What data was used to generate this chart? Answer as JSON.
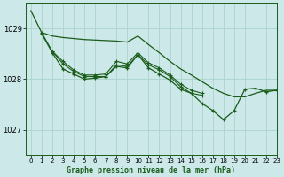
{
  "background_color": "#cce8e8",
  "grid_color": "#aad4cc",
  "line_color": "#1a5c1a",
  "title": "Graphe pression niveau de la mer (hPa)",
  "xlim": [
    -0.5,
    23
  ],
  "ylim": [
    1026.5,
    1029.5
  ],
  "yticks": [
    1027,
    1028,
    1029
  ],
  "xticks": [
    0,
    1,
    2,
    3,
    4,
    5,
    6,
    7,
    8,
    9,
    10,
    11,
    12,
    13,
    14,
    15,
    16,
    17,
    18,
    19,
    20,
    21,
    22,
    23
  ],
  "line1": {
    "x": [
      0,
      1,
      2,
      3,
      4,
      5,
      6,
      7,
      8,
      9,
      10,
      11,
      12,
      13,
      14,
      15,
      16,
      17,
      18,
      19,
      20,
      21,
      22,
      23
    ],
    "y": [
      1029.35,
      1028.92,
      1028.85,
      1028.82,
      1028.8,
      1028.78,
      1028.77,
      1028.76,
      1028.75,
      1028.73,
      1028.85,
      1028.68,
      1028.52,
      1028.35,
      1028.2,
      1028.08,
      1027.95,
      1027.82,
      1027.72,
      1027.65,
      1027.65,
      1027.72,
      1027.78,
      1027.78
    ]
  },
  "line2": {
    "x": [
      1,
      2,
      3,
      4,
      5,
      6,
      7,
      8,
      9,
      10,
      11,
      12,
      13,
      14,
      15,
      16
    ],
    "y": [
      1028.92,
      1028.55,
      1028.35,
      1028.18,
      1028.08,
      1028.08,
      1028.1,
      1028.35,
      1028.3,
      1028.52,
      1028.32,
      1028.22,
      1028.08,
      1027.9,
      1027.78,
      1027.72
    ]
  },
  "line3": {
    "x": [
      2,
      3,
      4,
      5,
      6,
      7,
      8,
      9,
      10,
      11,
      12,
      13,
      14,
      15,
      16
    ],
    "y": [
      1028.55,
      1028.3,
      1028.15,
      1028.05,
      1028.05,
      1028.05,
      1028.28,
      1028.25,
      1028.48,
      1028.28,
      1028.18,
      1028.05,
      1027.85,
      1027.72,
      1027.68
    ]
  },
  "line4": {
    "x": [
      1,
      2,
      3,
      4,
      5,
      6,
      7,
      8,
      9,
      10,
      11,
      12,
      13,
      14,
      15,
      16,
      17,
      18,
      19,
      20,
      21,
      22,
      23
    ],
    "y": [
      1028.9,
      1028.52,
      1028.2,
      1028.1,
      1028.0,
      1028.02,
      1028.05,
      1028.25,
      1028.22,
      1028.48,
      1028.22,
      1028.1,
      1027.98,
      1027.8,
      1027.72,
      1027.52,
      1027.38,
      1027.2,
      1027.38,
      1027.8,
      1027.82,
      1027.75,
      1027.78
    ]
  }
}
